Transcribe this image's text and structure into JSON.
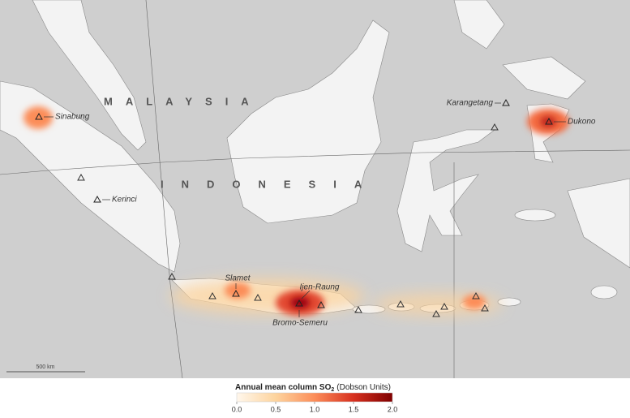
{
  "map": {
    "country_labels": [
      "MALAYSIA",
      "INDONESIA"
    ],
    "volcanoes": [
      {
        "name": "Sinabung"
      },
      {
        "name": "Kerinci"
      },
      {
        "name": "Karangetang"
      },
      {
        "name": "Dukono"
      },
      {
        "name": "Slamet"
      },
      {
        "name": "Ijen-Raung"
      },
      {
        "name": "Bromo-Semeru"
      }
    ],
    "scale_bar": "500 km"
  },
  "legend": {
    "title": "Annual mean column SO",
    "title_subscript": "2",
    "units": "(Dobson Units)",
    "lim": [
      0,
      2
    ],
    "ticks": [
      {
        "value": 0,
        "label": "0.0"
      },
      0.5,
      {
        "value": 1,
        "label": "1.0"
      },
      1.5,
      {
        "value": 2,
        "label": "2.0"
      }
    ]
  }
}
